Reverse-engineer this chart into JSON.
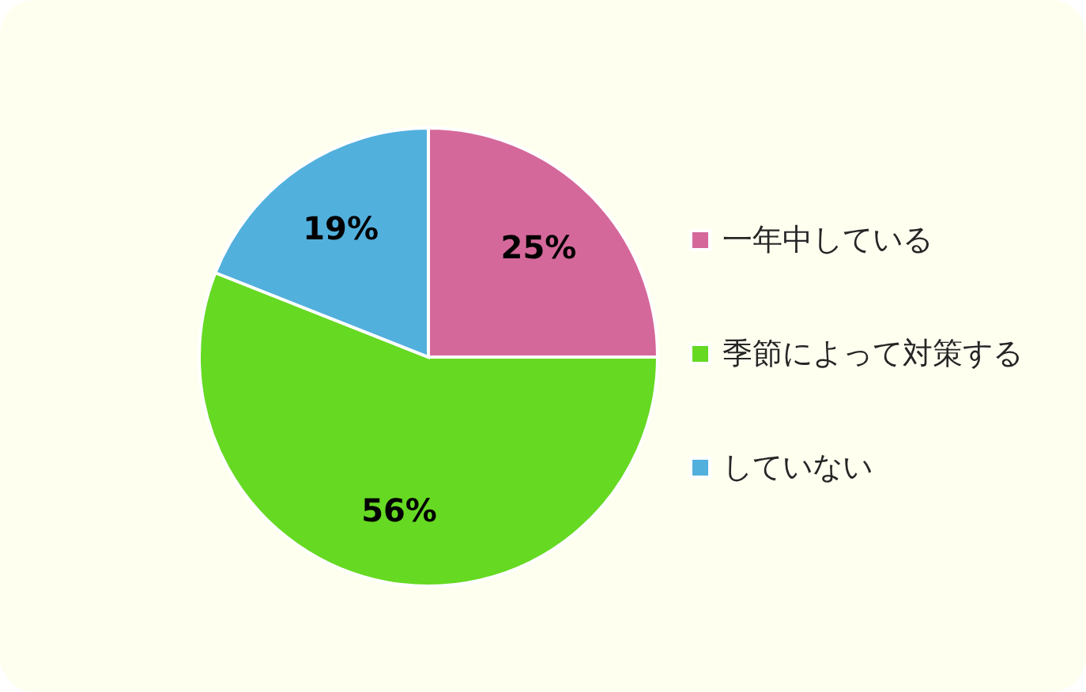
{
  "chart_data": {
    "type": "pie",
    "categories": [
      "一年中している",
      "季節によって対策する",
      "していない"
    ],
    "values": [
      25,
      56,
      19
    ],
    "colors": [
      "#d5689a",
      "#66d923",
      "#52b0dd"
    ],
    "value_labels": [
      "25%",
      "56%",
      "19%"
    ],
    "legend": "right"
  }
}
